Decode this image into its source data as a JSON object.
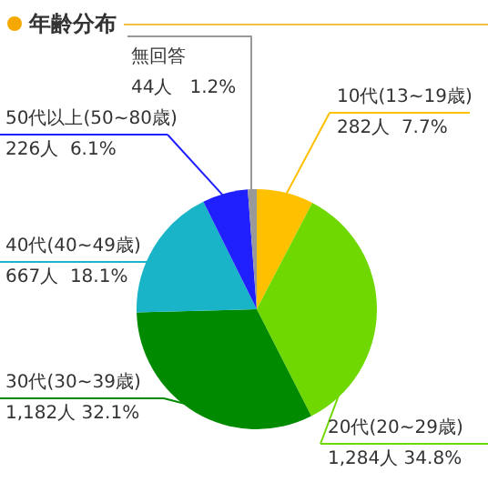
{
  "chart_data": {
    "type": "pie",
    "title": "年齢分布",
    "categories": [
      "10代(13~19歳)",
      "20代(20~29歳)",
      "30代(30~39歳)",
      "40代(40~49歳)",
      "50代以上(50~80歳)",
      "無回答"
    ],
    "values": [
      282,
      1284,
      1182,
      667,
      226,
      44
    ],
    "colors": [
      "#ffc000",
      "#6fd800",
      "#008a00",
      "#1ab4c8",
      "#2020ff",
      "#999999"
    ],
    "value_labels": [
      "282人  7.7%",
      "1,284人 34.8%",
      "1,182人 32.1%",
      "667人  18.1%",
      "226人  6.1%",
      "44人   1.2%"
    ]
  }
}
